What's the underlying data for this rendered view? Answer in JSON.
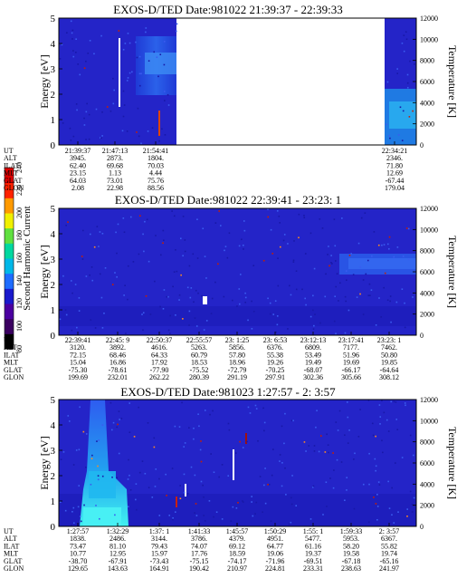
{
  "colorbar": {
    "label": "Second Harmonic Current",
    "ticks": [
      "80",
      "100",
      "120",
      "140",
      "160",
      "180",
      "200",
      "220",
      "240"
    ],
    "colors": [
      "#000000",
      "#3a0060",
      "#4b00a0",
      "#1a1acc",
      "#1e6cff",
      "#00b8e8",
      "#00d8a0",
      "#60e040",
      "#f0f000",
      "#ff9a00",
      "#ff2200",
      "#dd0000"
    ]
  },
  "palette": {
    "background": "#2424c8",
    "dark": "#1818a8",
    "light": "#3a5cf0",
    "cyan": "#18a8f0",
    "bright": "#30e8f0",
    "white": "#ffffff",
    "spot_red": "#c82000",
    "spot_orange": "#ff8a20"
  },
  "chart_data": [
    {
      "type": "heatmap",
      "title": "EXOS-D/TED   Date:981022  21:39:37 - 22:39:33",
      "ylabel": "Energy [eV]",
      "y2label": "Temperature [K]",
      "ylim": [
        0,
        5
      ],
      "y2lim": [
        0,
        12000
      ],
      "yticks": [
        "0",
        "1",
        "2",
        "3",
        "4",
        "5"
      ],
      "y2ticks": [
        "0",
        "2000",
        "4000",
        "6000",
        "8000",
        "10000",
        "12000"
      ],
      "data_gap": true,
      "row_labels": [
        "UT",
        "ALT",
        "ILAT",
        "MLT",
        "GLAT",
        "GLON"
      ],
      "columns": [
        {
          "values": [
            "21:39:37",
            "3945.",
            "62.40",
            "23.15",
            "64.03",
            "2.08"
          ]
        },
        {
          "values": [
            "21:47:13",
            "2873.",
            "69.68",
            "1.13",
            "73.01",
            "22.98"
          ]
        },
        {
          "values": [
            "21:54:41",
            "1804.",
            "70.03",
            "4.44",
            "75.76",
            "88.56"
          ]
        },
        {
          "values": [
            "22:34:21",
            "2346.",
            "71.80",
            "12.69",
            "-67.44",
            "179.04"
          ]
        }
      ]
    },
    {
      "type": "heatmap",
      "title": "EXOS-D/TED   Date:981022  22:39:41 - 23:23: 1",
      "ylabel": "Energy [eV]",
      "y2label": "Temperature [K]",
      "ylim": [
        0,
        5
      ],
      "y2lim": [
        0,
        12000
      ],
      "yticks": [
        "0",
        "1",
        "2",
        "3",
        "4",
        "5"
      ],
      "y2ticks": [
        "0",
        "2000",
        "4000",
        "6000",
        "8000",
        "10000",
        "12000"
      ],
      "row_labels": [
        "UT",
        "ALT",
        "ILAT",
        "MLT",
        "GLAT",
        "GLON"
      ],
      "columns": [
        {
          "values": [
            "22:39:41",
            "3120.",
            "72.15",
            "15.04",
            "-75.30",
            "199.69"
          ]
        },
        {
          "values": [
            "22:45: 9",
            "3892.",
            "68.46",
            "16.86",
            "-78.61",
            "232.01"
          ]
        },
        {
          "values": [
            "22:50:37",
            "4616.",
            "64.33",
            "17.92",
            "-77.90",
            "262.22"
          ]
        },
        {
          "values": [
            "22:55:57",
            "5263.",
            "60.79",
            "18.53",
            "-75.52",
            "280.39"
          ]
        },
        {
          "values": [
            "23: 1:25",
            "5856.",
            "57.80",
            "18.96",
            "-72.79",
            "291.19"
          ]
        },
        {
          "values": [
            "23: 6:53",
            "6376.",
            "55.38",
            "19.26",
            "-70.25",
            "297.91"
          ]
        },
        {
          "values": [
            "23:12:13",
            "6809.",
            "53.49",
            "19.49",
            "-68.07",
            "302.36"
          ]
        },
        {
          "values": [
            "23:17:41",
            "7177.",
            "51.96",
            "19.69",
            "-66.17",
            "305.66"
          ]
        },
        {
          "values": [
            "23:23: 1",
            "7462.",
            "50.80",
            "19.85",
            "-64.64",
            "308.12"
          ]
        }
      ]
    },
    {
      "type": "heatmap",
      "title": "EXOS-D/TED   Date:981023   1:27:57 -  2: 3:57",
      "ylabel": "Energy [eV]",
      "y2label": "Temperature [K]",
      "ylim": [
        0,
        5
      ],
      "y2lim": [
        0,
        12000
      ],
      "yticks": [
        "0",
        "1",
        "2",
        "3",
        "4",
        "5"
      ],
      "y2ticks": [
        "0",
        "2000",
        "4000",
        "6000",
        "8000",
        "10000",
        "12000"
      ],
      "row_labels": [
        "UT",
        "ALT",
        "ILAT",
        "MLT",
        "GLAT",
        "GLON"
      ],
      "columns": [
        {
          "values": [
            "1:27:57",
            "1838.",
            "73.47",
            "10.77",
            "-38.70",
            "129.65"
          ]
        },
        {
          "values": [
            "1:32:29",
            "2486.",
            "81.10",
            "12.95",
            "-67.91",
            "143.63"
          ]
        },
        {
          "values": [
            "1:37: 1",
            "3144.",
            "79.43",
            "15.97",
            "-73.43",
            "164.91"
          ]
        },
        {
          "values": [
            "1:41:33",
            "3786.",
            "74.07",
            "17.76",
            "-75.15",
            "190.42"
          ]
        },
        {
          "values": [
            "1:45:57",
            "4379.",
            "69.12",
            "18.59",
            "-74.17",
            "210.97"
          ]
        },
        {
          "values": [
            "1:50:29",
            "4951.",
            "64.77",
            "19.06",
            "-71.96",
            "224.81"
          ]
        },
        {
          "values": [
            "1:55: 1",
            "5477.",
            "61.16",
            "19.37",
            "-69.51",
            "233.31"
          ]
        },
        {
          "values": [
            "1:59:33",
            "5953.",
            "58.20",
            "19.58",
            "-67.18",
            "238.63"
          ]
        },
        {
          "values": [
            "2: 3:57",
            "6367.",
            "55.82",
            "19.74",
            "-65.16",
            "241.97"
          ]
        }
      ]
    }
  ]
}
